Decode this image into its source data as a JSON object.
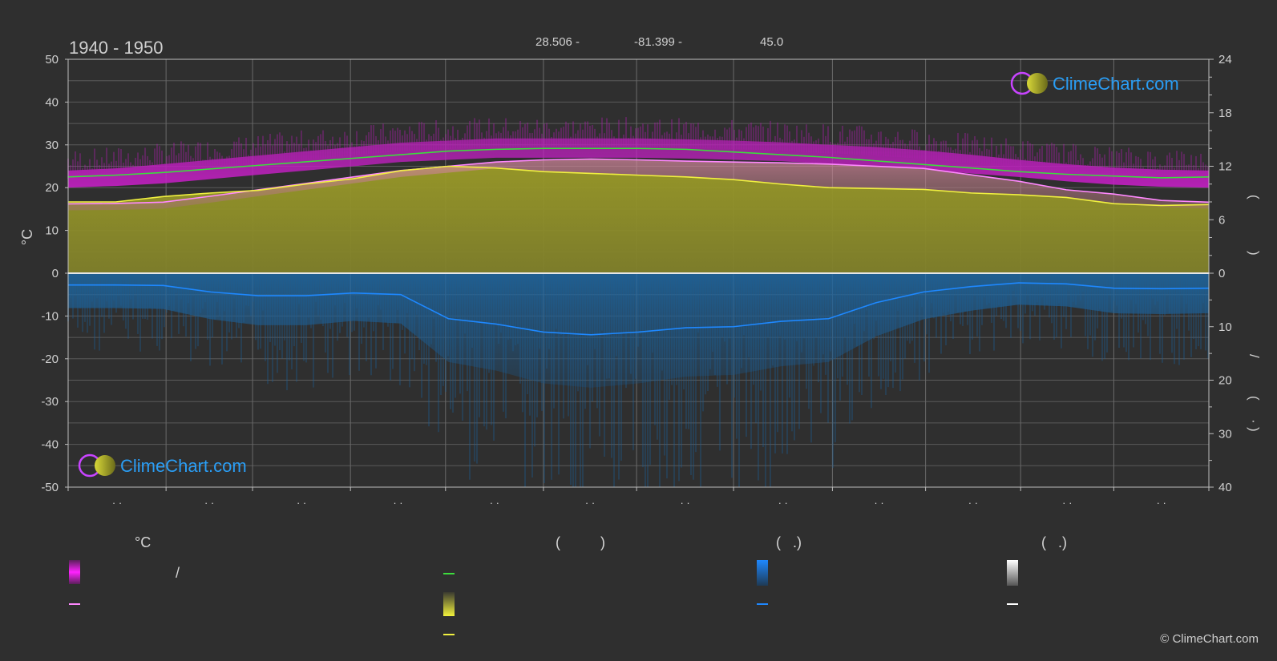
{
  "header": {
    "period": "1940 - 1950",
    "lat": "28.506 -",
    "lon": "-81.399 -",
    "elev": "45.0"
  },
  "logo": {
    "text": "ClimeChart.com"
  },
  "footer": {
    "copyright": "© ClimeChart.com"
  },
  "legend": {
    "col1_title": "°C",
    "col2_title": "(          )",
    "col3_title": "(   .)",
    "col4_title": "(   .)",
    "slash": "/"
  },
  "right_axis_labels": [
    "(",
    ")",
    "/",
    "(",
    "·",
    ")"
  ],
  "colors": {
    "background": "#2f2f2f",
    "temp_range": "#c41fc4",
    "max_temp_line": "#ff88ff",
    "sunshine_fill": "#8f8f2a",
    "sunshine_line": "#f0f040",
    "daylight_line": "#3ddc3d",
    "precip": "#1e78c8",
    "snow": "#ffffff"
  },
  "chart_data": {
    "type": "area",
    "x_tick_labels": [
      "· ·",
      "· ·",
      "· ·",
      "· ·",
      "· ·",
      "· ·",
      "· ·",
      "· ·",
      "· ·",
      "· ·",
      "· ·",
      "· ·"
    ],
    "x": [
      0,
      0.5,
      1,
      1.5,
      2,
      2.5,
      3,
      3.5,
      4,
      4.5,
      5,
      5.5,
      6,
      6.5,
      7,
      7.5,
      8,
      8.5,
      9,
      9.5,
      10,
      10.5,
      11,
      11.5,
      12
    ],
    "y_left": {
      "label": "°C",
      "ylim": [
        -50,
        50
      ],
      "ticks": [
        50,
        40,
        30,
        20,
        10,
        0,
        -10,
        -20,
        -30,
        -40,
        -50
      ]
    },
    "y_right_top": {
      "ylim": [
        0,
        24
      ],
      "ticks": [
        24,
        18,
        12,
        6,
        0
      ]
    },
    "y_right_bottom": {
      "ylim": [
        0,
        40
      ],
      "ticks": [
        0,
        10,
        20,
        30,
        40
      ]
    },
    "series": [
      {
        "key": "daylight",
        "axis": "right_top",
        "values": [
          10.8,
          11.0,
          11.3,
          11.7,
          12.1,
          12.5,
          12.9,
          13.3,
          13.7,
          13.9,
          14.0,
          14.0,
          14.0,
          13.9,
          13.6,
          13.3,
          13.0,
          12.6,
          12.2,
          11.8,
          11.4,
          11.1,
          10.9,
          10.7,
          10.8
        ]
      },
      {
        "key": "sunshine",
        "axis": "right_top",
        "values": [
          8.0,
          8.0,
          8.6,
          9.0,
          9.3,
          10.0,
          10.6,
          11.5,
          12.0,
          11.8,
          11.4,
          11.2,
          11.0,
          10.8,
          10.5,
          10.0,
          9.6,
          9.5,
          9.4,
          9.0,
          8.8,
          8.5,
          7.8,
          7.6,
          7.7
        ]
      },
      {
        "key": "max_temp",
        "axis": "left",
        "values": [
          16.2,
          16.3,
          16.6,
          18.0,
          19.5,
          21.0,
          22.5,
          24.0,
          25.0,
          26.0,
          26.5,
          26.7,
          26.5,
          26.2,
          26.0,
          25.8,
          25.5,
          25.0,
          24.5,
          23.0,
          21.5,
          19.5,
          18.5,
          17.0,
          16.6
        ]
      },
      {
        "key": "temp_band_low",
        "axis": "left",
        "values": [
          20.0,
          20.4,
          21.0,
          22.0,
          23.0,
          24.0,
          25.0,
          26.0,
          26.5,
          27.0,
          27.0,
          27.0,
          27.0,
          26.8,
          26.5,
          26.2,
          25.5,
          25.0,
          24.3,
          23.3,
          22.5,
          21.5,
          20.7,
          20.2,
          20.0
        ]
      },
      {
        "key": "temp_band_high",
        "axis": "left",
        "values": [
          24.0,
          24.5,
          25.5,
          26.5,
          27.5,
          28.5,
          29.5,
          30.5,
          31.0,
          31.5,
          31.5,
          31.5,
          31.5,
          31.3,
          31.0,
          30.6,
          30.0,
          29.5,
          28.7,
          27.7,
          26.5,
          25.5,
          24.7,
          24.2,
          24.0
        ]
      },
      {
        "key": "precip",
        "axis": "right_bottom",
        "values": [
          2.2,
          2.2,
          2.3,
          3.5,
          4.2,
          4.2,
          3.7,
          4.0,
          8.5,
          9.5,
          11.0,
          11.5,
          11.0,
          10.2,
          10.0,
          9.0,
          8.5,
          5.5,
          3.5,
          2.5,
          1.8,
          2.0,
          2.8,
          2.9,
          2.8
        ]
      }
    ]
  }
}
